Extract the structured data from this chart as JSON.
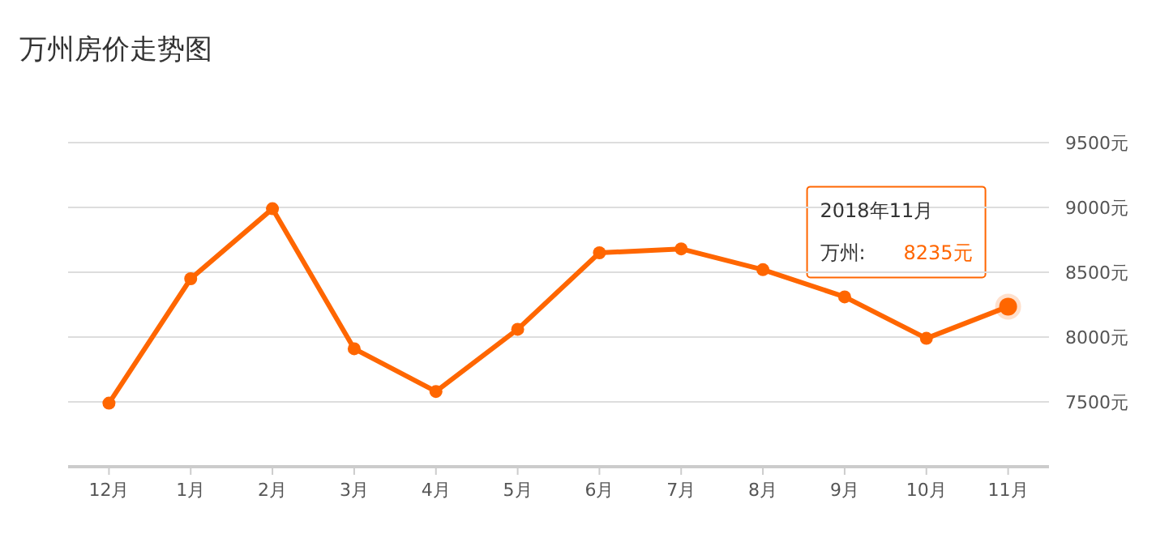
{
  "chart_data": {
    "type": "line",
    "title": "万州房价走势图",
    "categories": [
      "12月",
      "1月",
      "2月",
      "3月",
      "4月",
      "5月",
      "6月",
      "7月",
      "8月",
      "9月",
      "10月",
      "11月"
    ],
    "series": [
      {
        "name": "万州:",
        "color": "#ff6600",
        "values": [
          7490,
          8450,
          8990,
          7910,
          7580,
          8060,
          8650,
          8680,
          8520,
          8310,
          7990,
          8235
        ],
        "value_labels": [
          null,
          null,
          null,
          null,
          null,
          null,
          null,
          null,
          null,
          null,
          null,
          "8235元"
        ]
      }
    ],
    "ylim": [
      7000,
      9500
    ],
    "yticks": [
      {
        "value": 7500,
        "label": "7500元"
      },
      {
        "value": 8000,
        "label": "8000元"
      },
      {
        "value": 8500,
        "label": "8500元"
      },
      {
        "value": 9000,
        "label": "9000元"
      },
      {
        "value": 9500,
        "label": "9500元"
      }
    ],
    "grid": "y",
    "marker": "circle",
    "line_style": "solid",
    "annotations": [
      "2018年11月"
    ]
  }
}
